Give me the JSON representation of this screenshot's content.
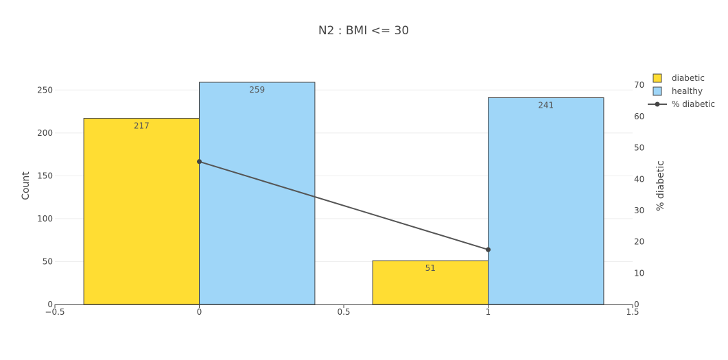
{
  "chart_data": {
    "type": "bar",
    "title": "N2 : BMI <= 30",
    "x_ticks": [
      -0.5,
      0,
      0.5,
      1,
      1.5
    ],
    "x_tick_labels": [
      "−0.5",
      "0",
      "0.5",
      "1",
      "1.5"
    ],
    "xlim": [
      -0.5,
      1.5
    ],
    "ylabel": "Count",
    "ylim": [
      0,
      275
    ],
    "y_ticks": [
      0,
      50,
      100,
      150,
      200,
      250
    ],
    "y_tick_labels": [
      "0",
      "50",
      "100",
      "150",
      "200",
      "250"
    ],
    "y2label": "% diabetic",
    "y2lim": [
      0,
      75.3
    ],
    "y2_ticks": [
      0,
      10,
      20,
      30,
      40,
      50,
      60,
      70
    ],
    "y2_tick_labels": [
      "0",
      "10",
      "20",
      "30",
      "40",
      "50",
      "60",
      "70"
    ],
    "grid": true,
    "legend_position": "top-right",
    "bar_width": 0.4,
    "series": [
      {
        "name": "diabetic",
        "kind": "bar",
        "color": "#ffdd33",
        "x": [
          -0.2,
          0.8
        ],
        "values": [
          217,
          51
        ],
        "labels": [
          "217",
          "51"
        ]
      },
      {
        "name": "healthy",
        "kind": "bar",
        "color": "#9fd6f8",
        "x": [
          0.2,
          1.2
        ],
        "values": [
          259,
          241
        ],
        "labels": [
          "259",
          "241"
        ]
      },
      {
        "name": "% diabetic",
        "kind": "line",
        "axis": "y2",
        "color": "#555555",
        "x": [
          0,
          1
        ],
        "values": [
          45.6,
          17.5
        ]
      }
    ]
  }
}
